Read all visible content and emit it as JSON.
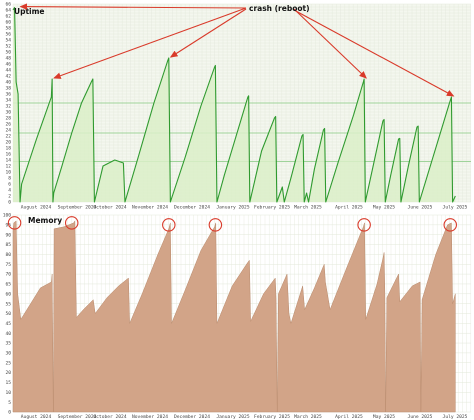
{
  "colors": {
    "uptime_line": "#2f9a2f",
    "uptime_fill": "#dbeec8",
    "uptime_bg": "#f4f7ef",
    "memory_fill": "#d2a488",
    "memory_line": "#b88a6c",
    "annotation": "#d93a2a",
    "grid_minor": "#e3e8da",
    "grid_major": "#9fd39a"
  },
  "annotation": {
    "label": "crash (reboot)"
  },
  "chart_data": [
    {
      "type": "line",
      "title": "Uptime",
      "ylim": [
        0,
        66
      ],
      "yticks": [
        0,
        2,
        4,
        6,
        8,
        10,
        12,
        14,
        16,
        18,
        20,
        22,
        24,
        26,
        28,
        30,
        32,
        34,
        36,
        38,
        40,
        42,
        44,
        46,
        48,
        50,
        52,
        54,
        56,
        58,
        60,
        62,
        64,
        66
      ],
      "x_labels": [
        "August 2024",
        "September 2024",
        "October 2024",
        "November 2024",
        "December 2024",
        "January 2025",
        "February 2025",
        "March 2025",
        "April 2025",
        "May 2025",
        "June 2025",
        "July 2025"
      ],
      "reference_lines": [
        13.5,
        23,
        33
      ],
      "points": [
        [
          0.0,
          64
        ],
        [
          0.04,
          64.8
        ],
        [
          0.08,
          40
        ],
        [
          0.13,
          36
        ],
        [
          0.18,
          0
        ],
        [
          0.22,
          6
        ],
        [
          0.6,
          21
        ],
        [
          0.98,
          35
        ],
        [
          1.0,
          41
        ],
        [
          1.02,
          0
        ],
        [
          1.04,
          3
        ],
        [
          1.25,
          12
        ],
        [
          1.5,
          23
        ],
        [
          1.75,
          33
        ],
        [
          2.0,
          40
        ],
        [
          2.04,
          41
        ],
        [
          2.08,
          0
        ],
        [
          2.3,
          12
        ],
        [
          2.6,
          14
        ],
        [
          2.82,
          13
        ],
        [
          2.86,
          0
        ],
        [
          3.2,
          15
        ],
        [
          3.6,
          33
        ],
        [
          3.95,
          47
        ],
        [
          3.98,
          48
        ],
        [
          4.02,
          0
        ],
        [
          4.4,
          15
        ],
        [
          4.8,
          32
        ],
        [
          5.15,
          45
        ],
        [
          5.17,
          45.5
        ],
        [
          5.21,
          0
        ],
        [
          5.4,
          9
        ],
        [
          5.7,
          22
        ],
        [
          6.0,
          35
        ],
        [
          6.02,
          35.4
        ],
        [
          6.05,
          0
        ],
        [
          6.35,
          17
        ],
        [
          6.68,
          28
        ],
        [
          6.71,
          28.5
        ],
        [
          6.74,
          0
        ],
        [
          6.88,
          5
        ],
        [
          6.93,
          0
        ],
        [
          7.1,
          8
        ],
        [
          7.38,
          22
        ],
        [
          7.41,
          22.5
        ],
        [
          7.44,
          0
        ],
        [
          7.5,
          3
        ],
        [
          7.55,
          0
        ],
        [
          7.7,
          11
        ],
        [
          7.93,
          24
        ],
        [
          7.96,
          24.5
        ],
        [
          7.99,
          0
        ],
        [
          8.3,
          13
        ],
        [
          8.7,
          29
        ],
        [
          8.95,
          40
        ],
        [
          8.97,
          41
        ],
        [
          9.0,
          0
        ],
        [
          9.2,
          12
        ],
        [
          9.45,
          27
        ],
        [
          9.48,
          27.5
        ],
        [
          9.51,
          0
        ],
        [
          9.65,
          9
        ],
        [
          9.85,
          21
        ],
        [
          9.88,
          21.2
        ],
        [
          9.91,
          0
        ],
        [
          10.1,
          12
        ],
        [
          10.32,
          25
        ],
        [
          10.35,
          25.3
        ],
        [
          10.38,
          0
        ],
        [
          10.8,
          18
        ],
        [
          11.15,
          33
        ],
        [
          11.2,
          35
        ],
        [
          11.23,
          0
        ],
        [
          11.3,
          2
        ]
      ]
    },
    {
      "type": "area",
      "title": "Memory",
      "ylim": [
        0,
        100
      ],
      "yticks": [
        0,
        5,
        10,
        15,
        20,
        25,
        30,
        35,
        40,
        45,
        50,
        55,
        60,
        65,
        70,
        75,
        80,
        85,
        90,
        95,
        100
      ],
      "x_labels": [
        "August 2024",
        "September 2024",
        "October 2024",
        "November 2024",
        "December 2024",
        "January 2025",
        "February 2025",
        "March 2025",
        "April 2025",
        "May 2025",
        "June 2025",
        "July 2025"
      ],
      "points": [
        [
          0.0,
          92
        ],
        [
          0.02,
          96
        ],
        [
          0.08,
          97
        ],
        [
          0.12,
          60
        ],
        [
          0.2,
          47
        ],
        [
          0.45,
          55
        ],
        [
          0.7,
          63
        ],
        [
          0.98,
          66
        ],
        [
          1.0,
          70
        ],
        [
          1.03,
          0
        ],
        [
          1.05,
          93
        ],
        [
          1.3,
          94
        ],
        [
          1.55,
          96
        ],
        [
          1.58,
          97
        ],
        [
          1.62,
          48
        ],
        [
          1.8,
          52
        ],
        [
          2.05,
          57
        ],
        [
          2.1,
          50
        ],
        [
          2.4,
          58
        ],
        [
          2.7,
          64
        ],
        [
          2.95,
          68
        ],
        [
          2.98,
          45
        ],
        [
          3.3,
          60
        ],
        [
          3.7,
          80
        ],
        [
          3.98,
          93
        ],
        [
          4.02,
          96
        ],
        [
          4.05,
          45
        ],
        [
          4.4,
          62
        ],
        [
          4.8,
          82
        ],
        [
          5.15,
          94
        ],
        [
          5.18,
          96
        ],
        [
          5.21,
          45
        ],
        [
          5.6,
          64
        ],
        [
          6.0,
          76
        ],
        [
          6.04,
          77
        ],
        [
          6.07,
          46
        ],
        [
          6.4,
          60
        ],
        [
          6.7,
          68
        ],
        [
          6.72,
          58
        ],
        [
          6.75,
          0
        ],
        [
          6.78,
          60
        ],
        [
          7.0,
          70
        ],
        [
          7.05,
          50
        ],
        [
          7.1,
          45
        ],
        [
          7.4,
          64
        ],
        [
          7.45,
          52
        ],
        [
          7.7,
          63
        ],
        [
          7.95,
          75
        ],
        [
          7.98,
          66
        ],
        [
          8.1,
          52
        ],
        [
          8.5,
          72
        ],
        [
          8.95,
          94
        ],
        [
          8.98,
          96
        ],
        [
          9.01,
          47
        ],
        [
          9.3,
          65
        ],
        [
          9.45,
          78
        ],
        [
          9.48,
          81
        ],
        [
          9.5,
          60
        ],
        [
          9.52,
          0
        ],
        [
          9.55,
          58
        ],
        [
          9.85,
          70
        ],
        [
          9.88,
          56
        ],
        [
          10.2,
          64
        ],
        [
          10.4,
          66
        ],
        [
          10.42,
          0
        ],
        [
          10.45,
          57
        ],
        [
          10.8,
          80
        ],
        [
          11.1,
          95
        ],
        [
          11.2,
          96
        ],
        [
          11.23,
          55
        ],
        [
          11.3,
          60
        ]
      ]
    }
  ]
}
